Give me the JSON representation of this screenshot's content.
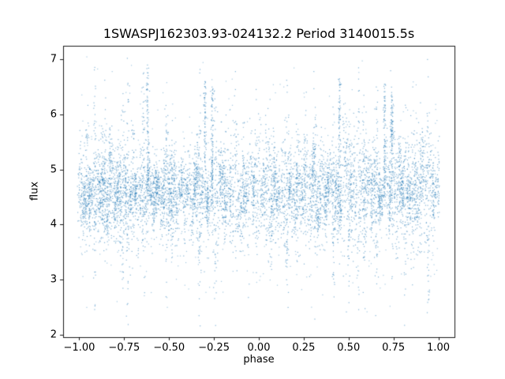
{
  "chart_data": {
    "type": "scatter",
    "title": "1SWASPJ162303.93-024132.2 Period 3140015.5s",
    "xlabel": "phase",
    "ylabel": "flux",
    "xlim": [
      -1.09,
      1.09
    ],
    "ylim": [
      1.95,
      7.25
    ],
    "xticks": [
      {
        "value": -1.0,
        "label": "−1.00"
      },
      {
        "value": -0.75,
        "label": "−0.75"
      },
      {
        "value": -0.5,
        "label": "−0.50"
      },
      {
        "value": -0.25,
        "label": "−0.25"
      },
      {
        "value": 0.0,
        "label": "0.00"
      },
      {
        "value": 0.25,
        "label": "0.25"
      },
      {
        "value": 0.5,
        "label": "0.50"
      },
      {
        "value": 0.75,
        "label": "0.75"
      },
      {
        "value": 1.0,
        "label": "1.00"
      }
    ],
    "yticks": [
      {
        "value": 2,
        "label": "2"
      },
      {
        "value": 3,
        "label": "3"
      },
      {
        "value": 4,
        "label": "4"
      },
      {
        "value": 5,
        "label": "5"
      },
      {
        "value": 6,
        "label": "6"
      },
      {
        "value": 7,
        "label": "7"
      }
    ],
    "grid": false,
    "legend": null,
    "marker_color": "#1f77b4",
    "marker_alpha": 0.55,
    "description": "Phase-folded light curve: dense vertically-striped noise band of flux around 4.6, spanning phase -1.0 to 1.0, with sparse outliers from flux 2.2 to 7.0 and narrow bright spikes reaching flux 6.4-6.9",
    "distribution": {
      "kind": "vertical-striped-noise-band",
      "band_center": 4.6,
      "band_wave_amplitude": 0.18,
      "band_wave_cycles": 23,
      "stripes_per_unit_phase": 70,
      "points_per_stripe": 55,
      "stripe_sigma_min": 0.2,
      "stripe_sigma_max": 0.55,
      "long_stripe_fraction": 0.2,
      "long_stripe_sigma": 0.85,
      "stripe_x_jitter": 0.0045,
      "background_points": 700,
      "background_sigma": 0.95,
      "flux_min": 2.2,
      "flux_max": 7.0
    },
    "spikes": [
      {
        "phase": -0.62,
        "top": 6.9
      },
      {
        "phase": -0.3,
        "top": 6.6
      },
      {
        "phase": -0.26,
        "top": 6.5
      },
      {
        "phase": 0.45,
        "top": 6.65
      },
      {
        "phase": 0.7,
        "top": 6.55
      },
      {
        "phase": 0.74,
        "top": 6.4
      }
    ]
  }
}
